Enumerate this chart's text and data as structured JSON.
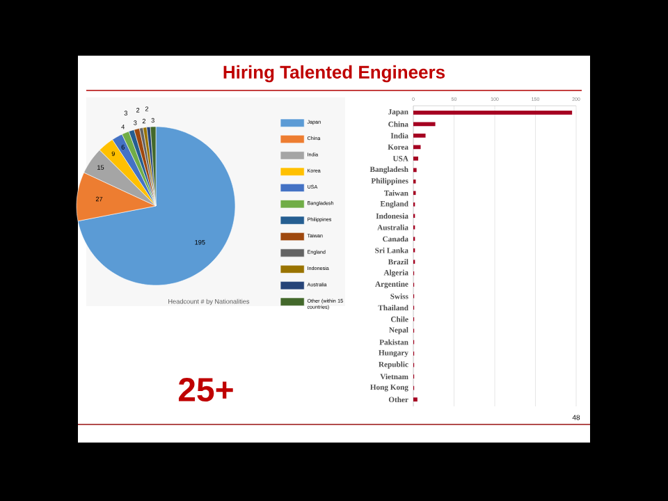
{
  "chart_data": [
    {
      "type": "other",
      "title": "Hiring Talented Engineers",
      "annotations": [
        "25+",
        "48"
      ]
    },
    {
      "type": "pie",
      "categories": [
        "Japan",
        "China",
        "India",
        "Korea",
        "USA",
        "Bangladesh",
        "Philippines",
        "Taiwan",
        "England",
        "Indonesia",
        "Australia",
        "Other (within 15 countries)"
      ],
      "values": [
        195,
        27,
        15,
        9,
        6,
        4,
        3,
        3,
        2,
        2,
        2,
        3
      ],
      "colors": [
        "#5b9bd5",
        "#ed7d31",
        "#a5a5a5",
        "#ffc000",
        "#4472c4",
        "#70ad47",
        "#255e91",
        "#9e480e",
        "#636363",
        "#997300",
        "#264478",
        "#43682b"
      ],
      "data_labels": true,
      "legend": "right",
      "annotations": [
        "Headcount # by Nationalities"
      ]
    },
    {
      "type": "bar",
      "orientation": "horizontal",
      "categories": [
        "Japan",
        "China",
        "India",
        "Korea",
        "USA",
        "Bangladesh",
        "Philippines",
        "Taiwan",
        "England",
        "Indonesia",
        "Australia",
        "Canada",
        "Sri Lanka",
        "Brazil",
        "Algeria",
        "Argentine",
        "Swiss",
        "Thailand",
        "Chile",
        "Nepal",
        "Pakistan",
        "Hungary",
        "Republic",
        "Vietnam",
        "Hong Kong",
        "Other"
      ],
      "values": [
        195,
        27,
        15,
        9,
        6,
        4,
        3,
        3,
        2,
        2,
        2,
        2,
        2,
        2,
        1,
        1,
        1,
        1,
        1,
        1,
        1,
        1,
        1,
        1,
        1,
        5
      ],
      "color": "#a50021",
      "xlim": [
        0,
        200
      ],
      "xticks": [
        0,
        50,
        100,
        150,
        200
      ],
      "grid": "x"
    }
  ]
}
